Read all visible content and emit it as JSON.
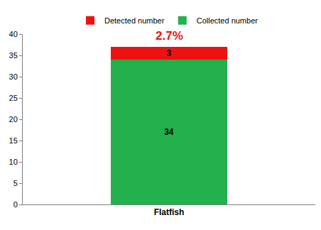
{
  "chart_data": {
    "type": "bar",
    "stacked": true,
    "categories": [
      "Flatfish"
    ],
    "series": [
      {
        "name": "Collected number",
        "color": "#22b14c",
        "values": [
          34
        ]
      },
      {
        "name": "Detected number",
        "color": "#ee1111",
        "values": [
          3
        ]
      }
    ],
    "annotations": [
      {
        "text": "2.7%",
        "category": "Flatfish",
        "color": "#ee1111"
      }
    ],
    "ylim": [
      0,
      40
    ],
    "yticks": [
      0,
      5,
      10,
      15,
      20,
      25,
      30,
      35,
      40
    ],
    "grid": false,
    "legend": "top",
    "data_labels": true
  }
}
